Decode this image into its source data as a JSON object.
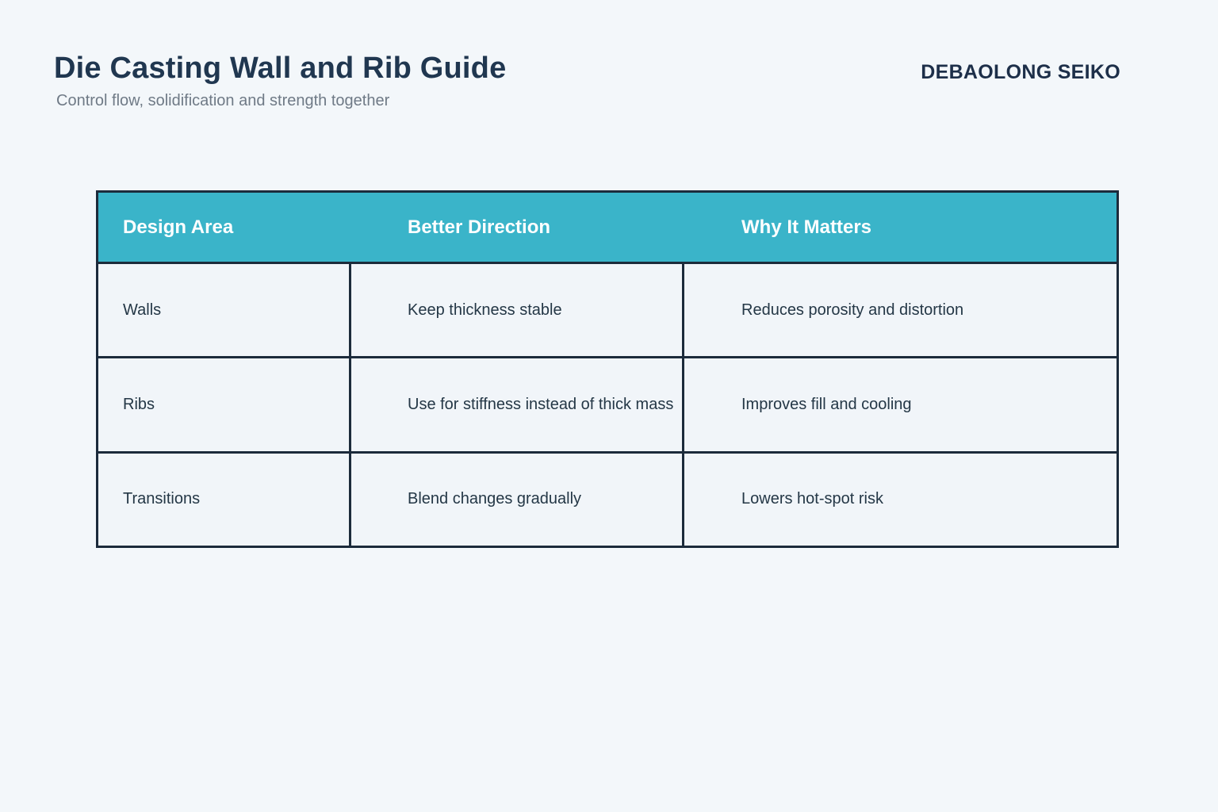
{
  "header": {
    "title": "Die Casting Wall and Rib Guide",
    "subtitle": "Control flow, solidification and strength together",
    "brand": "DEBAOLONG SEIKO"
  },
  "table": {
    "columns": [
      "Design Area",
      "Better Direction",
      "Why It Matters"
    ],
    "rows": [
      {
        "design_area": "Walls",
        "better_direction": "Keep thickness stable",
        "why_it_matters": "Reduces porosity and distortion"
      },
      {
        "design_area": "Ribs",
        "better_direction": "Use for stiffness instead of thick mass",
        "why_it_matters": "Improves fill and cooling"
      },
      {
        "design_area": "Transitions",
        "better_direction": "Blend changes gradually",
        "why_it_matters": "Lowers hot-spot risk"
      }
    ]
  },
  "colors": {
    "page_bg": "#f3f7fa",
    "cell_bg": "#f1f5f9",
    "header_bg": "#3ab4c9",
    "border": "#1c2b3b",
    "title_color": "#203750",
    "subtitle_color": "#6f7a86",
    "body_text": "#243746",
    "header_text": "#ffffff"
  }
}
